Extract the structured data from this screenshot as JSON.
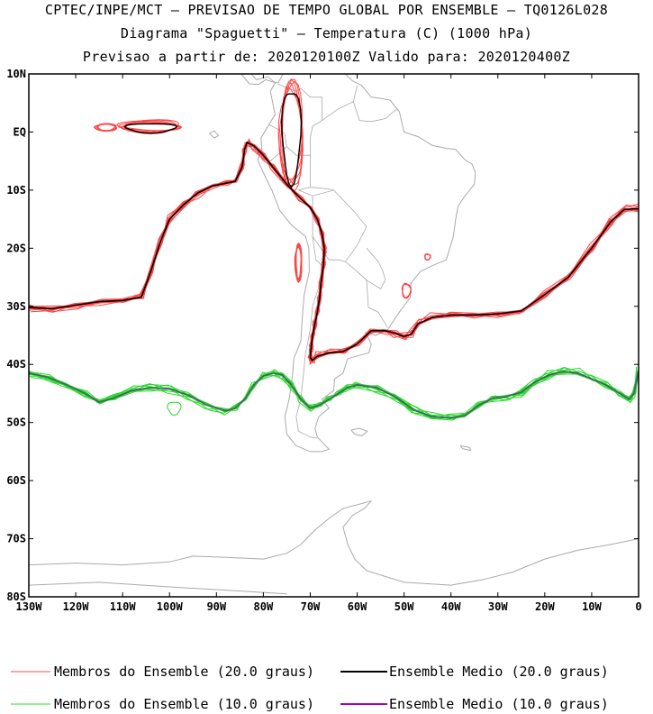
{
  "header": {
    "line1": "CPTEC/INPE/MCT – PREVISAO DE TEMPO GLOBAL POR ENSEMBLE – TQ0126L028",
    "line2": "Diagrama \"Spaguetti\" – Temperatura (C) (1000 hPa)",
    "line3": "Previsao a partir de: 2020120100Z  Valido para: 2020120400Z"
  },
  "legend": {
    "members20": "Membros do Ensemble (20.0 graus)",
    "mean20": "Ensemble Medio (20.0 graus)",
    "members10": "Membros do Ensemble (10.0 graus)",
    "mean10": "Ensemble Medio (10.0 graus)"
  },
  "colors": {
    "members20": "#ff4444",
    "mean20": "#000000",
    "members10": "#22dd22",
    "mean10": "#a000c0",
    "coast": "#aaaaaa"
  },
  "chart_data": {
    "type": "line",
    "xlim": [
      -130,
      0
    ],
    "ylim": [
      -80,
      10
    ],
    "x_ticks": [
      "130W",
      "120W",
      "110W",
      "100W",
      "90W",
      "80W",
      "70W",
      "60W",
      "50W",
      "40W",
      "30W",
      "20W",
      "10W",
      "0"
    ],
    "y_ticks": [
      "10N",
      "EQ",
      "10S",
      "20S",
      "30S",
      "40S",
      "50S",
      "60S",
      "70S",
      "80S"
    ],
    "series": [
      {
        "name": "Ensemble Medio (20.0 graus)",
        "x": [
          -130,
          -125,
          -120,
          -115,
          -110,
          -106,
          -104,
          -102,
          -100,
          -97,
          -94,
          -91,
          -88,
          -86,
          -84.5,
          -84,
          -83.5,
          -82,
          -80,
          -78,
          -75,
          -72,
          -70,
          -68.5,
          -67.5,
          -67,
          -67.2,
          -67.7,
          -68,
          -68.5,
          -69,
          -69.5,
          -69.8,
          -70,
          -69.6,
          -68.5,
          -66,
          -63,
          -60,
          -57,
          -54,
          -52,
          -50,
          -48.5,
          -47,
          -44,
          -40,
          -35,
          -30,
          -25,
          -20,
          -15,
          -10,
          -6,
          -3,
          0
        ],
        "y": [
          -30.2,
          -30.4,
          -29.8,
          -29.2,
          -29,
          -28.4,
          -24,
          -19,
          -15,
          -12.5,
          -10.5,
          -9.3,
          -8.8,
          -8.5,
          -6,
          -3,
          -1.8,
          -2.4,
          -4,
          -6,
          -9,
          -11.5,
          -13,
          -15,
          -17.5,
          -20,
          -23,
          -26,
          -28.5,
          -31,
          -33,
          -35,
          -37,
          -38.8,
          -39.3,
          -38.6,
          -38,
          -37.8,
          -36.5,
          -34.2,
          -34.2,
          -34.6,
          -35.2,
          -34.8,
          -33,
          -31.9,
          -31.5,
          -31.5,
          -31.3,
          -30.8,
          -28,
          -25,
          -20,
          -15.5,
          -13.3,
          -13.2
        ]
      },
      {
        "name": "Ensemble Medio (10.0 graus)",
        "x": [
          -130,
          -126,
          -122,
          -118,
          -115,
          -112,
          -108,
          -104,
          -100,
          -96,
          -92,
          -88,
          -86,
          -84,
          -82,
          -80,
          -78,
          -76,
          -74,
          -72,
          -70,
          -68,
          -66,
          -64,
          -62,
          -60,
          -56,
          -52,
          -48,
          -44,
          -40,
          -37,
          -34,
          -31,
          -28,
          -25,
          -22,
          -19,
          -16,
          -13,
          -10,
          -7,
          -4,
          -2,
          -1,
          0
        ],
        "y": [
          -41.5,
          -42.2,
          -43.5,
          -45,
          -46.5,
          -45.8,
          -44.5,
          -44,
          -44.2,
          -45.3,
          -47,
          -48,
          -47.5,
          -46,
          -43.5,
          -42,
          -41.5,
          -41.8,
          -43.5,
          -46,
          -47.5,
          -47,
          -46,
          -45,
          -44,
          -43.5,
          -44,
          -45.5,
          -47.8,
          -49,
          -49.2,
          -48.8,
          -47,
          -45.8,
          -45.5,
          -44.8,
          -43,
          -41.8,
          -41.2,
          -41.5,
          -42.5,
          -43.5,
          -45,
          -46,
          -45,
          -41
        ]
      }
    ]
  }
}
